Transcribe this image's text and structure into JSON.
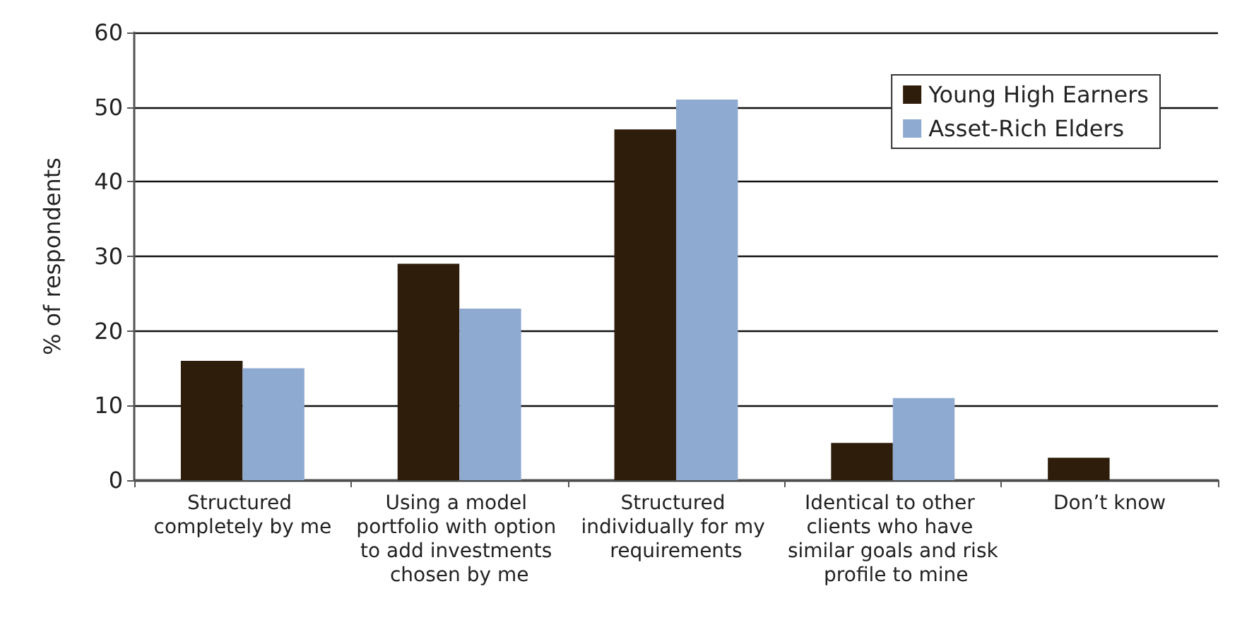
{
  "chart_data": {
    "type": "bar",
    "ylabel": "% of respondents",
    "categories": [
      "Structured completely by me",
      "Using a model portfolio with option to add investments chosen by me",
      "Structured individually for my requirements",
      "Identical to other clients who have similar goals and risk profile to mine",
      "Don’t know"
    ],
    "series": [
      {
        "name": "Young High Earners",
        "color": "#2e1d0b",
        "values": [
          16,
          29,
          47,
          5,
          3
        ]
      },
      {
        "name": "Asset-Rich Elders",
        "color": "#8faad1",
        "values": [
          15,
          23,
          51,
          11,
          0
        ]
      }
    ],
    "ylim": [
      0,
      60
    ],
    "yticks": [
      0,
      10,
      20,
      30,
      40,
      50,
      60
    ],
    "grid": "y",
    "legend": "top right"
  }
}
